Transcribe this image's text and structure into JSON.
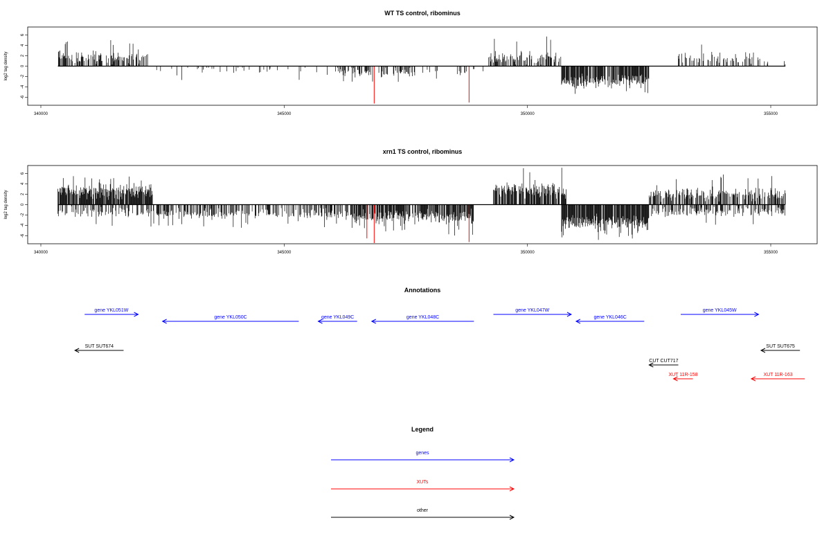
{
  "chart_data": [
    {
      "type": "bar",
      "title": "WT TS control, ribominus",
      "ylabel": "log2 tag density",
      "xlim": [
        340000,
        355000
      ],
      "ylim": [
        -7,
        7
      ],
      "x_ticks": [
        "340000",
        "345000",
        "350000",
        "355000"
      ],
      "y_ticks": [
        "6",
        "4",
        "2",
        "0",
        "-2",
        "-4",
        "-6"
      ],
      "segments": [
        {
          "start": 340350,
          "end": 342200,
          "strand": 1,
          "mean": 1.6,
          "spread": 1.4,
          "density": 0.55,
          "max": 5.2
        },
        {
          "start": 342200,
          "end": 346100,
          "strand": -1,
          "mean": 0.8,
          "spread": 1.0,
          "density": 0.08,
          "max": 3.0
        },
        {
          "start": 346100,
          "end": 347700,
          "strand": -1,
          "mean": 1.2,
          "spread": 1.0,
          "density": 0.35,
          "max": 3.2
        },
        {
          "start": 347700,
          "end": 349200,
          "strand": -1,
          "mean": 1.0,
          "spread": 1.0,
          "density": 0.08,
          "max": 2.8
        },
        {
          "start": 349200,
          "end": 350700,
          "strand": 1,
          "mean": 1.6,
          "spread": 1.3,
          "density": 0.55,
          "max": 6.0
        },
        {
          "start": 350700,
          "end": 352500,
          "strand": -1,
          "mean": 2.8,
          "spread": 1.4,
          "density": 0.85,
          "max": 5.5
        },
        {
          "start": 353100,
          "end": 354800,
          "strand": 1,
          "mean": 1.5,
          "spread": 1.2,
          "density": 0.3,
          "max": 4.5
        },
        {
          "start": 354800,
          "end": 355300,
          "strand": 1,
          "mean": 0.8,
          "spread": 0.5,
          "density": 0.1,
          "max": 1.2
        }
      ],
      "red_marks": [
        {
          "x": 346850,
          "value": -7.2
        },
        {
          "x": 348800,
          "value": -7.0
        }
      ]
    },
    {
      "type": "bar",
      "title": "xrn1 TS control, ribominus",
      "ylabel": "log2 tag density",
      "xlim": [
        340000,
        355000
      ],
      "ylim": [
        -7,
        7
      ],
      "x_ticks": [
        "340000",
        "345000",
        "350000",
        "355000"
      ],
      "y_ticks": [
        "6",
        "4",
        "2",
        "0",
        "-2",
        "-4",
        "-6"
      ],
      "segments": [
        {
          "start": 340350,
          "end": 342300,
          "strand": 1,
          "mean": 2.6,
          "spread": 1.5,
          "density": 0.85,
          "max": 6.2
        },
        {
          "start": 340350,
          "end": 342300,
          "strand": -1,
          "mean": 1.5,
          "spread": 1.0,
          "density": 0.4,
          "max": 5.0
        },
        {
          "start": 342300,
          "end": 346400,
          "strand": -1,
          "mean": 1.8,
          "spread": 1.0,
          "density": 0.45,
          "max": 4.5
        },
        {
          "start": 346400,
          "end": 348900,
          "strand": -1,
          "mean": 2.5,
          "spread": 1.4,
          "density": 0.75,
          "max": 6.0
        },
        {
          "start": 349300,
          "end": 350800,
          "strand": 1,
          "mean": 2.8,
          "spread": 1.5,
          "density": 0.8,
          "max": 7.2
        },
        {
          "start": 350700,
          "end": 352500,
          "strand": -1,
          "mean": 3.5,
          "spread": 1.5,
          "density": 0.9,
          "max": 7.0
        },
        {
          "start": 352500,
          "end": 355300,
          "strand": 1,
          "mean": 2.0,
          "spread": 1.3,
          "density": 0.6,
          "max": 6.0
        },
        {
          "start": 352500,
          "end": 355300,
          "strand": -1,
          "mean": 1.4,
          "spread": 1.0,
          "density": 0.45,
          "max": 4.0
        }
      ],
      "red_marks": [
        {
          "x": 346700,
          "value": -6.5
        },
        {
          "x": 346850,
          "value": -7.4
        },
        {
          "x": 348800,
          "value": -7.2
        }
      ]
    }
  ],
  "annotations": {
    "title": "Annotations",
    "genes": [
      {
        "label": "gene YKL051W",
        "start": 340900,
        "end": 342000,
        "strand": 1
      },
      {
        "label": "gene YKL050C",
        "start": 342500,
        "end": 345300,
        "strand": -1
      },
      {
        "label": "gene YKL049C",
        "start": 345700,
        "end": 346500,
        "strand": -1
      },
      {
        "label": "gene YKL048C",
        "start": 346800,
        "end": 348900,
        "strand": -1
      },
      {
        "label": "gene YKL047W",
        "start": 349300,
        "end": 350900,
        "strand": 1
      },
      {
        "label": "gene YKL046C",
        "start": 351000,
        "end": 352400,
        "strand": -1
      },
      {
        "label": "gene YKL045W",
        "start": 353150,
        "end": 354750,
        "strand": 1
      }
    ],
    "others": [
      {
        "label": "SUT SUT674",
        "start": 340700,
        "end": 341700,
        "strand": -1
      },
      {
        "label": "SUT SUT675",
        "start": 354800,
        "end": 355600,
        "strand": -1
      },
      {
        "label": "CUT CUT717",
        "start": 352500,
        "end": 353100,
        "strand": -1
      }
    ],
    "xuts": [
      {
        "label": "XUT 11R-158",
        "start": 353000,
        "end": 353400,
        "strand": -1
      },
      {
        "label": "XUT 11R-163",
        "start": 354600,
        "end": 355700,
        "strand": -1
      }
    ]
  },
  "legend": {
    "title": "Legend",
    "items": [
      {
        "label": "genes",
        "color": "#0000ff"
      },
      {
        "label": "XUTs",
        "color": "#ff0000"
      },
      {
        "label": "other",
        "color": "#000000"
      }
    ]
  },
  "colors": {
    "gene": "#0000ff",
    "xut": "#ff0000",
    "other": "#000000",
    "bars": "#000000",
    "red_marks": "#ff0000"
  }
}
